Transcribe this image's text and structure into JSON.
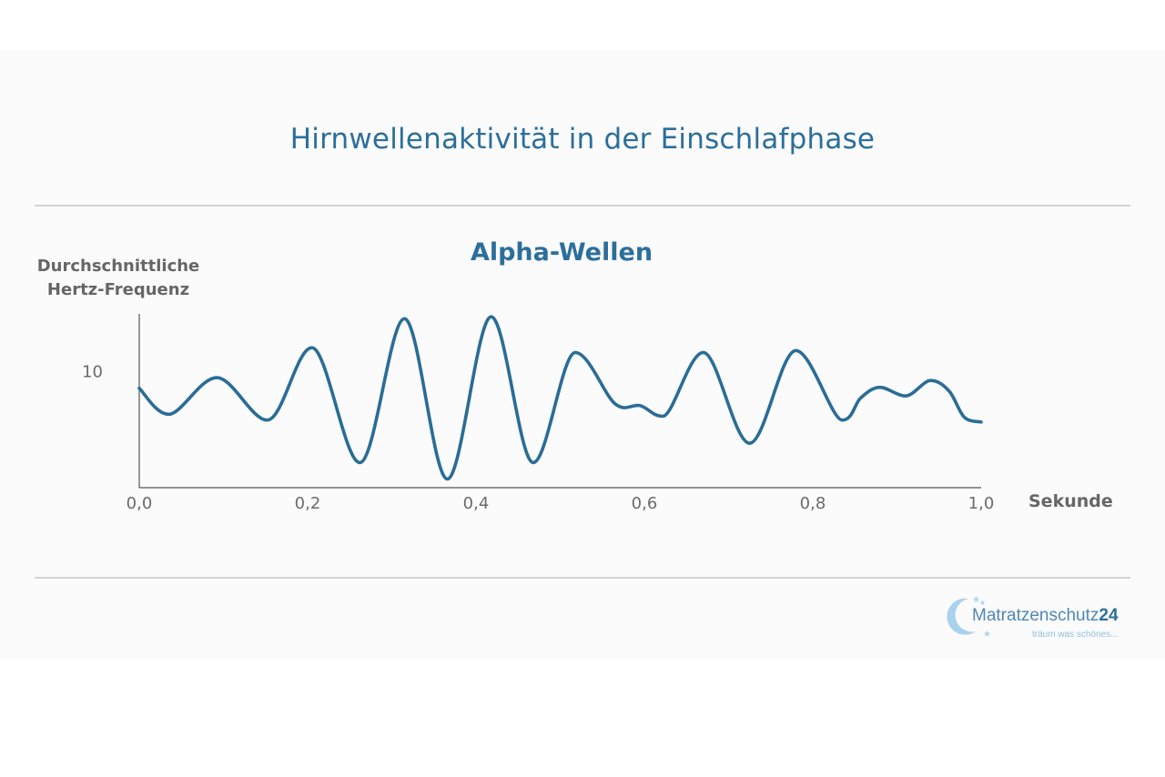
{
  "header": {
    "title": "Hirnwellenaktivität in der Einschlafphase"
  },
  "chart_data": {
    "type": "line",
    "title": "Alpha-Wellen",
    "ylabel_lines": [
      "Durchschnittliche",
      "Hertz-Frequenz"
    ],
    "xlabel": "Sekunde",
    "xlim": [
      0,
      1
    ],
    "ylim": [
      4,
      13
    ],
    "x_ticks": [
      "0,0",
      "0,2",
      "0,4",
      "0,6",
      "0,8",
      "1,0"
    ],
    "x_tick_values": [
      0,
      0.2,
      0.4,
      0.6,
      0.8,
      1.0
    ],
    "y_ticks": [
      "10"
    ],
    "y_tick_values": [
      10
    ],
    "grid": false,
    "line_color": "#2a6d96",
    "series": [
      {
        "x": [
          0.0,
          0.035,
          0.092,
          0.152,
          0.205,
          0.262,
          0.315,
          0.366,
          0.418,
          0.468,
          0.518,
          0.565,
          0.595,
          0.622,
          0.67,
          0.725,
          0.78,
          0.835,
          0.857,
          0.88,
          0.91,
          0.94,
          0.962,
          0.98,
          1.0
        ],
        "y": [
          9.15,
          7.8,
          9.7,
          7.5,
          11.25,
          5.3,
          12.75,
          4.45,
          12.85,
          5.3,
          11.0,
          8.35,
          8.25,
          7.7,
          11.0,
          6.3,
          11.1,
          7.5,
          8.65,
          9.2,
          8.75,
          9.55,
          9.0,
          7.65,
          7.4
        ]
      }
    ]
  },
  "logo": {
    "name": "Matratzenschutz",
    "number": "24",
    "slogan": "träum was schönes..."
  },
  "colors": {
    "accent": "#2c6f9c",
    "line": "#2a6d96",
    "axis_text": "#666666",
    "logo_light": "#9cc9ea"
  }
}
